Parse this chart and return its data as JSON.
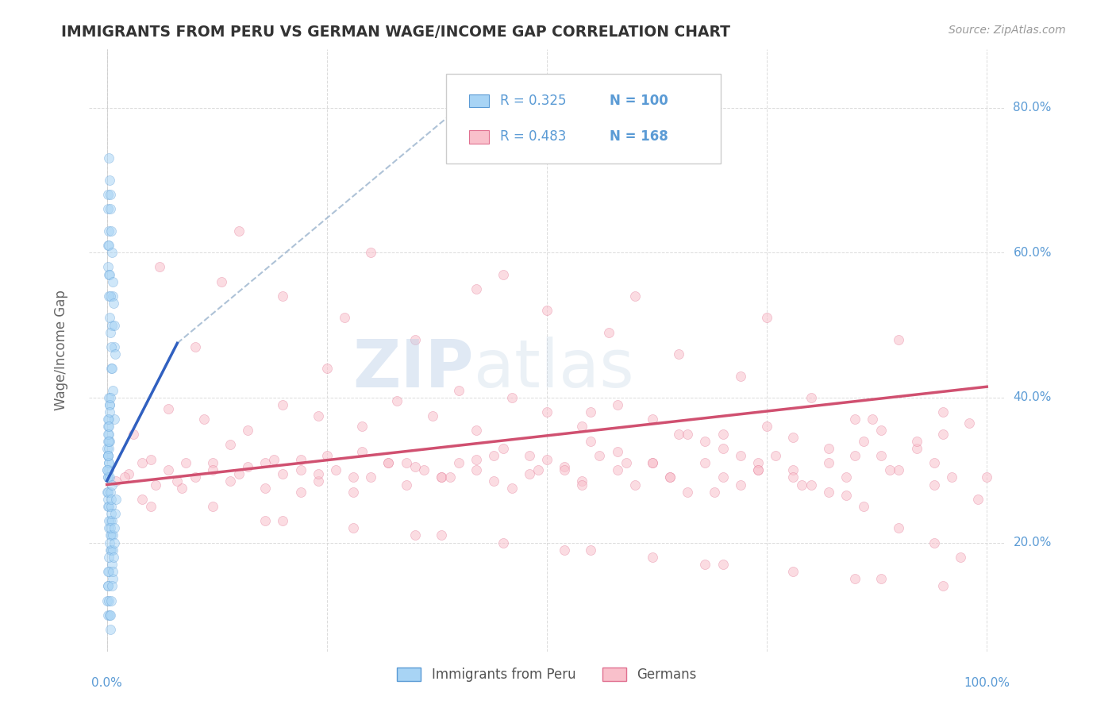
{
  "title": "IMMIGRANTS FROM PERU VS GERMAN WAGE/INCOME GAP CORRELATION CHART",
  "source": "Source: ZipAtlas.com",
  "ylabel": "Wage/Income Gap",
  "ytick_labels": [
    "20.0%",
    "40.0%",
    "60.0%",
    "80.0%"
  ],
  "ytick_values": [
    20.0,
    40.0,
    60.0,
    80.0
  ],
  "xlim": [
    -2.0,
    102.0
  ],
  "ylim": [
    5.0,
    88.0
  ],
  "legend_label1": "Immigrants from Peru",
  "legend_label2": "Germans",
  "R1": 0.325,
  "N1": 100,
  "R2": 0.483,
  "N2": 168,
  "color_peru": "#A8D4F5",
  "color_peru_edge": "#5B9BD5",
  "color_german": "#F9C0CB",
  "color_german_edge": "#E07090",
  "color_trendline_peru": "#3060C0",
  "color_trendline_german": "#D05070",
  "color_dashed": "#A0B8D0",
  "background_color": "#FFFFFF",
  "grid_color": "#D8D8D8",
  "title_color": "#333333",
  "axis_label_color": "#5B9BD5",
  "legend_text_color": "#5B9BD5",
  "scatter_alpha": 0.55,
  "scatter_size": 75,
  "peru_trendline_x0": 0.0,
  "peru_trendline_y0": 28.5,
  "peru_trendline_x1": 8.0,
  "peru_trendline_y1": 47.5,
  "peru_dash_x0": 8.0,
  "peru_dash_y0": 47.5,
  "peru_dash_x1": 42.0,
  "peru_dash_y1": 82.0,
  "german_trendline_x0": 0.0,
  "german_trendline_y0": 28.0,
  "german_trendline_x1": 100.0,
  "german_trendline_y1": 41.5,
  "peru_x": [
    0.1,
    0.2,
    0.15,
    0.25,
    0.05,
    0.3,
    0.1,
    0.2,
    0.05,
    0.15,
    0.4,
    0.5,
    0.35,
    0.25,
    0.1,
    0.05,
    0.12,
    0.18,
    0.22,
    0.28,
    0.6,
    0.7,
    0.8,
    0.5,
    0.3,
    0.15,
    0.08,
    0.12,
    0.18,
    0.25,
    0.35,
    0.45,
    0.55,
    0.65,
    0.08,
    0.12,
    0.18,
    0.22,
    0.3,
    0.38,
    0.5,
    0.6,
    0.7,
    0.8,
    0.1,
    0.15,
    0.2,
    0.25,
    0.32,
    0.4,
    0.48,
    0.56,
    0.62,
    0.7,
    0.08,
    0.15,
    0.2,
    0.25,
    0.3,
    0.38,
    0.05,
    0.1,
    0.15,
    0.2,
    0.25,
    0.3,
    0.38,
    0.45,
    0.52,
    0.6,
    0.07,
    0.12,
    0.18,
    0.22,
    0.28,
    0.35,
    0.1,
    0.15,
    0.2,
    0.28,
    0.35,
    0.42,
    0.5,
    0.58,
    0.65,
    0.72,
    0.8,
    0.88,
    0.95,
    1.0,
    0.2,
    0.28,
    0.35,
    0.42,
    0.5,
    0.58,
    0.65,
    0.72,
    0.8,
    0.9
  ],
  "peru_y": [
    29.0,
    31.0,
    36.0,
    40.0,
    33.0,
    34.0,
    32.0,
    30.0,
    27.0,
    25.0,
    23.0,
    21.0,
    19.0,
    22.0,
    26.0,
    30.0,
    32.0,
    35.0,
    37.0,
    39.0,
    50.0,
    54.0,
    47.0,
    44.0,
    39.0,
    34.0,
    29.0,
    27.0,
    25.0,
    23.0,
    21.0,
    19.0,
    17.0,
    15.0,
    58.0,
    61.0,
    57.0,
    54.0,
    51.0,
    49.0,
    47.0,
    44.0,
    41.0,
    37.0,
    37.0,
    35.0,
    33.0,
    31.0,
    29.0,
    27.0,
    25.0,
    23.0,
    21.0,
    19.0,
    68.0,
    66.0,
    63.0,
    61.0,
    57.0,
    54.0,
    12.0,
    10.0,
    14.0,
    16.0,
    18.0,
    20.0,
    22.0,
    24.0,
    26.0,
    28.0,
    30.0,
    32.0,
    34.0,
    36.0,
    38.0,
    40.0,
    16.0,
    14.0,
    12.0,
    10.0,
    8.0,
    10.0,
    12.0,
    14.0,
    16.0,
    18.0,
    20.0,
    22.0,
    24.0,
    26.0,
    73.0,
    70.0,
    68.0,
    66.0,
    63.0,
    60.0,
    56.0,
    53.0,
    50.0,
    46.0
  ],
  "german_x": [
    1.0,
    2.5,
    4.0,
    5.5,
    7.0,
    8.5,
    10.0,
    12.0,
    14.0,
    16.0,
    18.0,
    20.0,
    22.0,
    24.0,
    26.0,
    28.0,
    30.0,
    32.0,
    34.0,
    36.0,
    38.0,
    40.0,
    42.0,
    44.0,
    46.0,
    48.0,
    50.0,
    52.0,
    54.0,
    56.0,
    58.0,
    60.0,
    62.0,
    64.0,
    66.0,
    68.0,
    70.0,
    72.0,
    74.0,
    76.0,
    78.0,
    80.0,
    82.0,
    84.0,
    86.0,
    88.0,
    90.0,
    92.0,
    94.0,
    96.0,
    2.0,
    5.0,
    8.0,
    12.0,
    15.0,
    18.0,
    22.0,
    25.0,
    28.0,
    32.0,
    35.0,
    38.0,
    42.0,
    45.0,
    48.0,
    52.0,
    55.0,
    58.0,
    62.0,
    65.0,
    68.0,
    72.0,
    75.0,
    78.0,
    82.0,
    85.0,
    88.0,
    92.0,
    95.0,
    98.0,
    3.0,
    7.0,
    11.0,
    16.0,
    20.0,
    24.0,
    29.0,
    33.0,
    37.0,
    42.0,
    46.0,
    50.0,
    54.0,
    58.0,
    62.0,
    66.0,
    70.0,
    74.0,
    78.0,
    82.0,
    86.0,
    90.0,
    94.0,
    97.0,
    4.0,
    9.0,
    14.0,
    19.0,
    24.0,
    29.0,
    34.0,
    39.0,
    44.0,
    49.0,
    54.0,
    59.0,
    64.0,
    69.0,
    74.0,
    79.0,
    84.0,
    89.0,
    94.0,
    99.0,
    6.0,
    13.0,
    20.0,
    27.0,
    35.0,
    42.0,
    50.0,
    57.0,
    65.0,
    72.0,
    80.0,
    87.0,
    95.0,
    10.0,
    25.0,
    40.0,
    55.0,
    70.0,
    85.0,
    100.0,
    15.0,
    30.0,
    45.0,
    60.0,
    75.0,
    90.0,
    5.0,
    20.0,
    38.0,
    55.0,
    70.0,
    88.0,
    12.0,
    28.0,
    45.0,
    62.0,
    78.0,
    95.0,
    18.0,
    35.0,
    52.0,
    68.0,
    85.0,
    22.0
  ],
  "german_y": [
    28.5,
    29.5,
    31.0,
    28.0,
    30.0,
    27.5,
    29.0,
    31.0,
    28.5,
    30.5,
    27.5,
    29.5,
    31.5,
    28.5,
    30.0,
    27.0,
    29.0,
    31.0,
    28.0,
    30.0,
    29.0,
    31.0,
    30.0,
    28.5,
    27.5,
    29.5,
    31.5,
    30.5,
    28.5,
    32.0,
    30.0,
    28.0,
    31.0,
    29.0,
    27.0,
    31.0,
    29.0,
    28.0,
    30.0,
    32.0,
    30.0,
    28.0,
    31.0,
    29.0,
    34.0,
    32.0,
    30.0,
    33.0,
    31.0,
    29.0,
    29.0,
    31.5,
    28.5,
    30.0,
    29.5,
    31.0,
    30.0,
    32.0,
    29.0,
    31.0,
    30.5,
    29.0,
    31.5,
    33.0,
    32.0,
    30.0,
    34.0,
    32.5,
    31.0,
    35.0,
    34.0,
    32.0,
    36.0,
    34.5,
    33.0,
    37.0,
    35.5,
    34.0,
    38.0,
    36.5,
    35.0,
    38.5,
    37.0,
    35.5,
    39.0,
    37.5,
    36.0,
    39.5,
    37.5,
    35.5,
    40.0,
    38.0,
    36.0,
    39.0,
    37.0,
    35.0,
    33.0,
    31.0,
    29.0,
    27.0,
    25.0,
    22.0,
    20.0,
    18.0,
    26.0,
    31.0,
    33.5,
    31.5,
    29.5,
    32.5,
    31.0,
    29.0,
    32.0,
    30.0,
    28.0,
    31.0,
    29.0,
    27.0,
    30.0,
    28.0,
    26.5,
    30.0,
    28.0,
    26.0,
    58.0,
    56.0,
    54.0,
    51.0,
    48.0,
    55.0,
    52.0,
    49.0,
    46.0,
    43.0,
    40.0,
    37.0,
    35.0,
    47.0,
    44.0,
    41.0,
    38.0,
    35.0,
    32.0,
    29.0,
    63.0,
    60.0,
    57.0,
    54.0,
    51.0,
    48.0,
    25.0,
    23.0,
    21.0,
    19.0,
    17.0,
    15.0,
    25.0,
    22.0,
    20.0,
    18.0,
    16.0,
    14.0,
    23.0,
    21.0,
    19.0,
    17.0,
    15.0,
    27.0
  ]
}
